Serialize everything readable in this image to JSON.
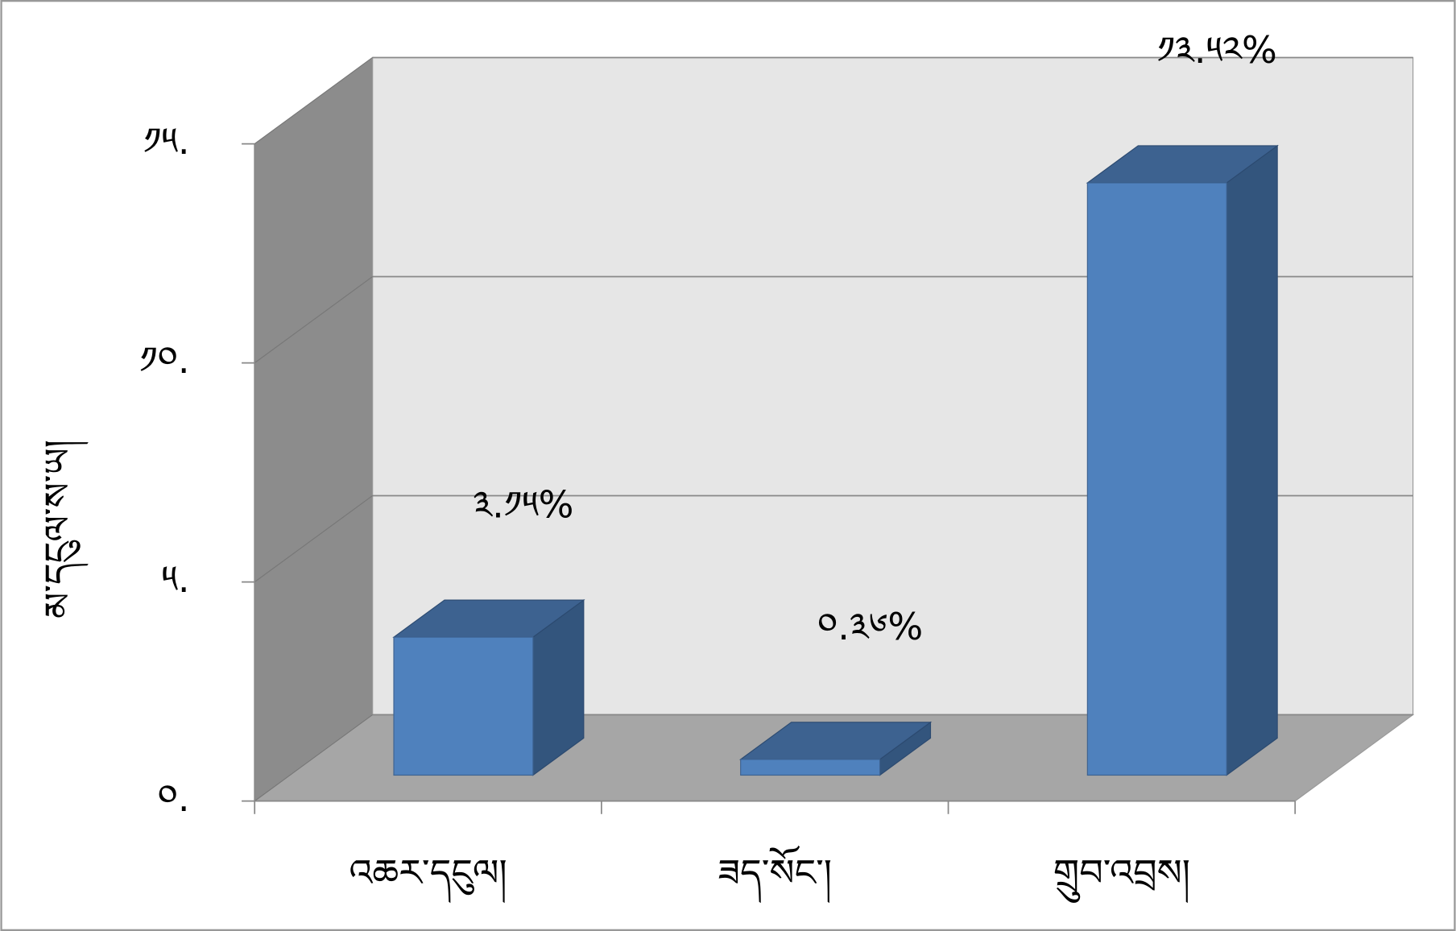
{
  "chart_data": {
    "type": "bar3d",
    "y_label": "མ་དངུལ་ས་ཡ།",
    "categories": [
      "འཆར་དངུལ།",
      "ཟད་སོང་།",
      "གྲུབ་འབྲས།"
    ],
    "values": [
      3.15,
      0.36,
      13.52
    ],
    "value_labels": [
      "༣.༡༥%",
      "༠.༣༦%",
      "༡༣.༥༢%"
    ],
    "color": "#4f81bd",
    "ylim": [
      0,
      15
    ],
    "yticks": [
      {
        "value": 0,
        "label": "༠."
      },
      {
        "value": 5,
        "label": "༥."
      },
      {
        "value": 10,
        "label": "༡༠."
      },
      {
        "value": 15,
        "label": "༡༥."
      }
    ],
    "grid": true
  }
}
